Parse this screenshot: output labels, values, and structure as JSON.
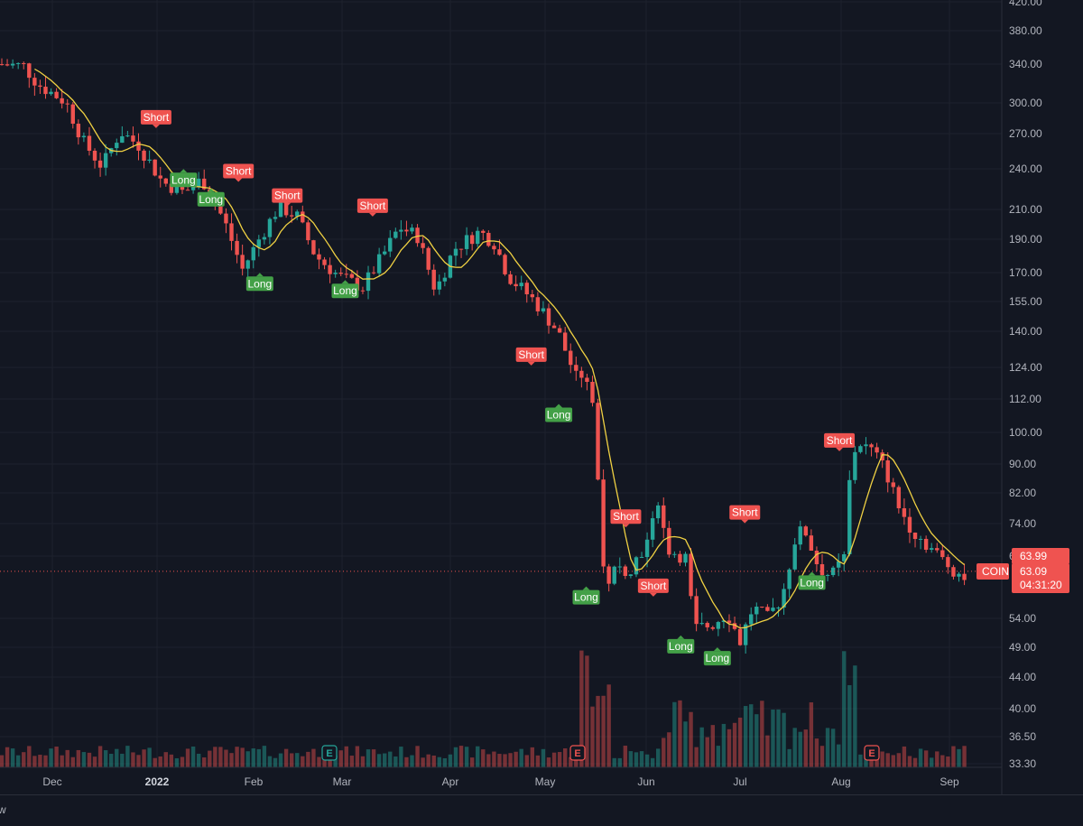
{
  "chart_data": {
    "type": "candlestick",
    "x_axis": {
      "ticks": [
        "Dec",
        "2022",
        "Feb",
        "Mar",
        "Apr",
        "May",
        "Jun",
        "Jul",
        "Aug",
        "Sep"
      ]
    },
    "y_axis": {
      "scale": "log",
      "ticks": [
        "420.00",
        "380.00",
        "340.00",
        "300.00",
        "270.00",
        "240.00",
        "210.00",
        "190.00",
        "170.00",
        "155.00",
        "140.00",
        "124.00",
        "112.00",
        "100.00",
        "90.00",
        "82.00",
        "74.00",
        "63.99",
        "54.00",
        "49.00",
        "44.00",
        "40.00",
        "36.50",
        "33.30"
      ]
    },
    "moving_average_color": "#f0d143",
    "up_color": "#26a69a",
    "down_color": "#ef5350",
    "current_price": {
      "symbol": "COIN",
      "value": "63.09",
      "prev": "63.99",
      "countdown": "04:31:20"
    },
    "signals": [
      {
        "label": "Short",
        "type": "short",
        "month": "Jan",
        "value": 275
      },
      {
        "label": "Long",
        "type": "long",
        "month": "Jan",
        "value": 240
      },
      {
        "label": "Long",
        "type": "long",
        "month": "Jan",
        "value": 225
      },
      {
        "label": "Short",
        "type": "short",
        "month": "Jan",
        "value": 230
      },
      {
        "label": "Long",
        "type": "long",
        "month": "Feb",
        "value": 170
      },
      {
        "label": "Short",
        "type": "short",
        "month": "Feb",
        "value": 212
      },
      {
        "label": "Long",
        "type": "long",
        "month": "Mar",
        "value": 166
      },
      {
        "label": "Short",
        "type": "short",
        "month": "Mar",
        "value": 205
      },
      {
        "label": "Short",
        "type": "short",
        "month": "May",
        "value": 125
      },
      {
        "label": "Long",
        "type": "long",
        "month": "May",
        "value": 110
      },
      {
        "label": "Long",
        "type": "long",
        "month": "May",
        "value": 60
      },
      {
        "label": "Short",
        "type": "short",
        "month": "Jun",
        "value": 73
      },
      {
        "label": "Short",
        "type": "short",
        "month": "Jun",
        "value": 58
      },
      {
        "label": "Long",
        "type": "long",
        "month": "Jun",
        "value": 51
      },
      {
        "label": "Long",
        "type": "long",
        "month": "Jul",
        "value": 49
      },
      {
        "label": "Short",
        "type": "short",
        "month": "Jul",
        "value": 74
      },
      {
        "label": "Long",
        "type": "long",
        "month": "Aug",
        "value": 63
      },
      {
        "label": "Short",
        "type": "short",
        "month": "Aug",
        "value": 94
      }
    ],
    "earnings_markers": [
      "E",
      "E",
      "E"
    ]
  },
  "footer": {
    "text": "w"
  }
}
